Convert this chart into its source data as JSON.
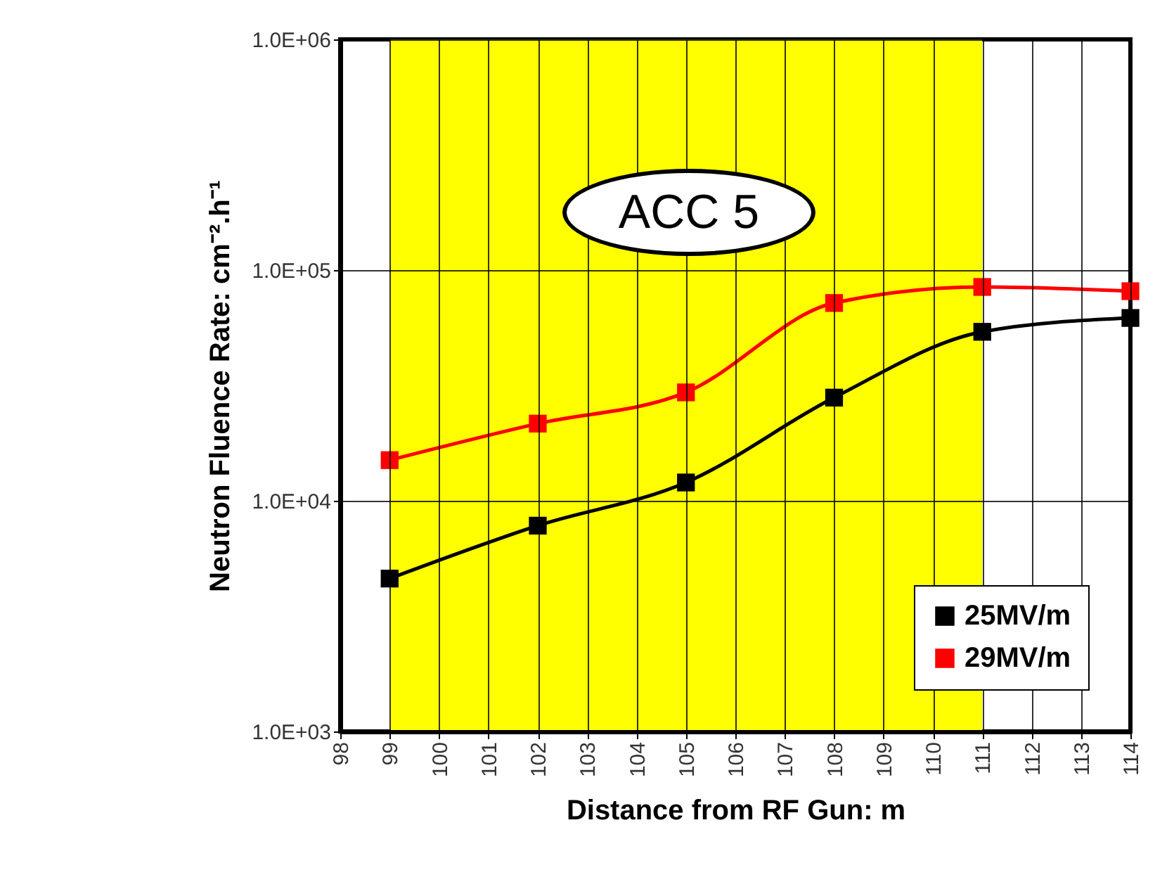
{
  "chart_data": {
    "type": "line",
    "xlabel": "Distance from RF Gun: m",
    "ylabel": "Neutron Fluence Rate: cm⁻².h⁻¹",
    "annotations": [
      "ACC 5"
    ],
    "x": [
      99,
      102,
      105,
      108,
      111,
      114
    ],
    "series": [
      {
        "name": "25MV/m",
        "color": "#000000",
        "values": [
          4600,
          7800,
          12000,
          28000,
          54000,
          62000
        ]
      },
      {
        "name": "29MV/m",
        "color": "#ff0000",
        "values": [
          15000,
          21600,
          29500,
          72000,
          84500,
          81000
        ]
      }
    ],
    "log": "y",
    "xlim": [
      98,
      114
    ],
    "xticks": [
      98,
      99,
      100,
      101,
      102,
      103,
      104,
      105,
      106,
      107,
      108,
      109,
      110,
      111,
      112,
      113,
      114
    ],
    "ylim": [
      1000,
      1000000
    ],
    "yticks": [
      {
        "value": 1000,
        "label": "1.0E+03"
      },
      {
        "value": 10000,
        "label": "1.0E+04"
      },
      {
        "value": 100000,
        "label": "1.0E+05"
      },
      {
        "value": 1000000,
        "label": "1.0E+06"
      }
    ],
    "bands": [
      {
        "axis": "x",
        "from": 99,
        "to": 111,
        "color": "#ffff00"
      }
    ],
    "grid": true,
    "legend": "bottom right",
    "marker": "square",
    "line_style": "solid"
  }
}
